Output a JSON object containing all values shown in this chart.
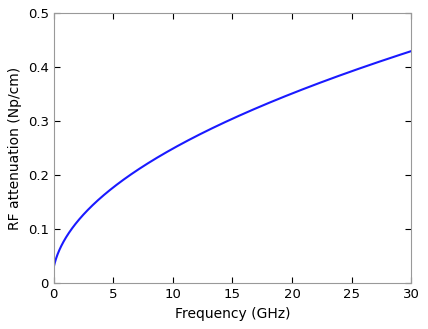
{
  "xlabel": "Frequency (GHz)",
  "ylabel": "RF attenuation (Np/cm)",
  "xlim": [
    0,
    30
  ],
  "ylim": [
    0,
    0.5
  ],
  "xticks": [
    0,
    5,
    10,
    15,
    20,
    25,
    30
  ],
  "yticks": [
    0,
    0.1,
    0.2,
    0.3,
    0.4,
    0.5
  ],
  "line_color": "#1a1aff",
  "line_width": 1.5,
  "background_color": "#ffffff",
  "plot_bg_color": "#ffffff",
  "spine_color": "#999999",
  "a_sq_num": 0.43,
  "a_sq_denom": 30.0,
  "b_val": 0.03,
  "freq_max": 30,
  "num_points": 2000,
  "xlabel_fontsize": 10,
  "ylabel_fontsize": 10,
  "tick_labelsize": 9.5
}
